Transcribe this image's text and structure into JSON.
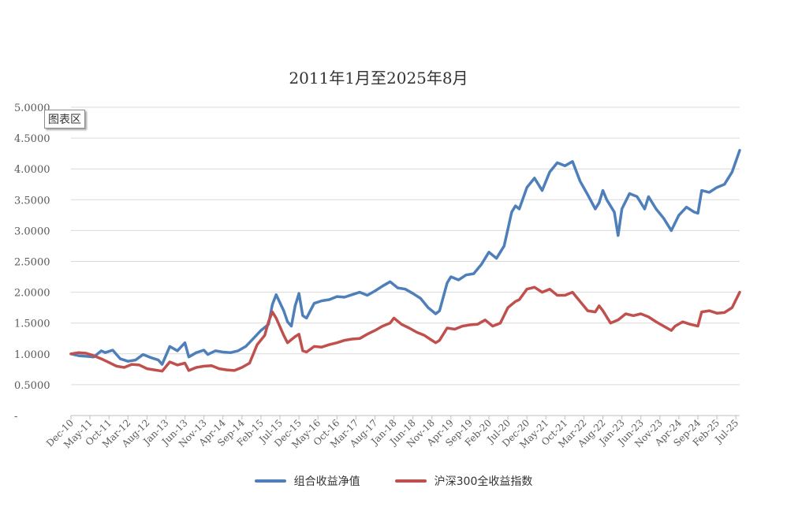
{
  "tooltip": "图表区",
  "chart_data": {
    "type": "line",
    "title": "2011年1月至2025年8月",
    "xlabel": "",
    "ylabel": "",
    "ylim": [
      0,
      5
    ],
    "y_ticks": [
      {
        "value": 0,
        "label": "-"
      },
      {
        "value": 0.5,
        "label": "0.5000"
      },
      {
        "value": 1.0,
        "label": "1.0000"
      },
      {
        "value": 1.5,
        "label": "1.5000"
      },
      {
        "value": 2.0,
        "label": "2.0000"
      },
      {
        "value": 2.5,
        "label": "2.5000"
      },
      {
        "value": 3.0,
        "label": "3.0000"
      },
      {
        "value": 3.5,
        "label": "3.5000"
      },
      {
        "value": 4.0,
        "label": "4.0000"
      },
      {
        "value": 4.5,
        "label": "4.5000"
      },
      {
        "value": 5.0,
        "label": "5.0000"
      }
    ],
    "x_tick_labels": [
      "Dec-10",
      "May-11",
      "Oct-11",
      "Mar-12",
      "Aug-12",
      "Jan-13",
      "Jun-13",
      "Nov-13",
      "Apr-14",
      "Sep-14",
      "Feb-15",
      "Jul-15",
      "Dec-15",
      "May-16",
      "Oct-16",
      "Mar-17",
      "Aug-17",
      "Jan-18",
      "Jun-18",
      "Nov-18",
      "Apr-19",
      "Sep-19",
      "Feb-20",
      "Jul-20",
      "Dec-20",
      "May-21",
      "Oct-21",
      "Mar-22",
      "Aug-22",
      "Jan-23",
      "Jun-23",
      "Nov-23",
      "Apr-24",
      "Sep-24",
      "Feb-25",
      "Jul-25"
    ],
    "x_start": "Dec-10",
    "x_end": "Aug-25",
    "grid": true,
    "legend_position": "bottom",
    "series": [
      {
        "name": "组合收益净值",
        "color": "#4e7fba",
        "points": [
          [
            "Dec-10",
            1.0
          ],
          [
            "Feb-11",
            0.97
          ],
          [
            "Apr-11",
            0.96
          ],
          [
            "Jun-11",
            0.95
          ],
          [
            "Aug-11",
            1.05
          ],
          [
            "Sep-11",
            1.02
          ],
          [
            "Nov-11",
            1.06
          ],
          [
            "Jan-12",
            0.92
          ],
          [
            "Mar-12",
            0.88
          ],
          [
            "May-12",
            0.9
          ],
          [
            "Jul-12",
            0.99
          ],
          [
            "Sep-12",
            0.94
          ],
          [
            "Nov-12",
            0.9
          ],
          [
            "Dec-12",
            0.83
          ],
          [
            "Feb-13",
            1.12
          ],
          [
            "Apr-13",
            1.05
          ],
          [
            "Jun-13",
            1.18
          ],
          [
            "Jul-13",
            0.95
          ],
          [
            "Sep-13",
            1.02
          ],
          [
            "Nov-13",
            1.06
          ],
          [
            "Dec-13",
            0.99
          ],
          [
            "Feb-14",
            1.05
          ],
          [
            "Apr-14",
            1.03
          ],
          [
            "Jun-14",
            1.02
          ],
          [
            "Aug-14",
            1.05
          ],
          [
            "Oct-14",
            1.12
          ],
          [
            "Dec-14",
            1.25
          ],
          [
            "Feb-15",
            1.38
          ],
          [
            "Apr-15",
            1.48
          ],
          [
            "May-15",
            1.8
          ],
          [
            "Jun-15",
            1.96
          ],
          [
            "Aug-15",
            1.7
          ],
          [
            "Sep-15",
            1.52
          ],
          [
            "Oct-15",
            1.45
          ],
          [
            "Nov-15",
            1.78
          ],
          [
            "Dec-15",
            1.98
          ],
          [
            "Jan-16",
            1.62
          ],
          [
            "Feb-16",
            1.58
          ],
          [
            "Apr-16",
            1.82
          ],
          [
            "Jun-16",
            1.86
          ],
          [
            "Aug-16",
            1.88
          ],
          [
            "Oct-16",
            1.93
          ],
          [
            "Dec-16",
            1.92
          ],
          [
            "Feb-17",
            1.96
          ],
          [
            "Apr-17",
            2.0
          ],
          [
            "Jun-17",
            1.95
          ],
          [
            "Aug-17",
            2.02
          ],
          [
            "Oct-17",
            2.1
          ],
          [
            "Dec-17",
            2.17
          ],
          [
            "Feb-18",
            2.07
          ],
          [
            "Apr-18",
            2.05
          ],
          [
            "Jun-18",
            1.98
          ],
          [
            "Aug-18",
            1.9
          ],
          [
            "Oct-18",
            1.75
          ],
          [
            "Dec-18",
            1.65
          ],
          [
            "Jan-19",
            1.7
          ],
          [
            "Mar-19",
            2.15
          ],
          [
            "Apr-19",
            2.25
          ],
          [
            "Jun-19",
            2.2
          ],
          [
            "Aug-19",
            2.28
          ],
          [
            "Oct-19",
            2.3
          ],
          [
            "Dec-19",
            2.45
          ],
          [
            "Feb-20",
            2.65
          ],
          [
            "Apr-20",
            2.55
          ],
          [
            "Jun-20",
            2.75
          ],
          [
            "Aug-20",
            3.3
          ],
          [
            "Sep-20",
            3.4
          ],
          [
            "Oct-20",
            3.35
          ],
          [
            "Dec-20",
            3.7
          ],
          [
            "Feb-21",
            3.85
          ],
          [
            "Apr-21",
            3.65
          ],
          [
            "Jun-21",
            3.95
          ],
          [
            "Aug-21",
            4.1
          ],
          [
            "Oct-21",
            4.05
          ],
          [
            "Dec-21",
            4.12
          ],
          [
            "Feb-22",
            3.8
          ],
          [
            "Apr-22",
            3.58
          ],
          [
            "Jun-22",
            3.35
          ],
          [
            "Jul-22",
            3.45
          ],
          [
            "Aug-22",
            3.65
          ],
          [
            "Sep-22",
            3.5
          ],
          [
            "Nov-22",
            3.3
          ],
          [
            "Dec-22",
            2.92
          ],
          [
            "Jan-23",
            3.35
          ],
          [
            "Mar-23",
            3.6
          ],
          [
            "May-23",
            3.55
          ],
          [
            "Jul-23",
            3.35
          ],
          [
            "Aug-23",
            3.55
          ],
          [
            "Oct-23",
            3.35
          ],
          [
            "Dec-23",
            3.2
          ],
          [
            "Feb-24",
            3.0
          ],
          [
            "Apr-24",
            3.25
          ],
          [
            "Jun-24",
            3.38
          ],
          [
            "Aug-24",
            3.3
          ],
          [
            "Sep-24",
            3.28
          ],
          [
            "Oct-24",
            3.65
          ],
          [
            "Dec-24",
            3.62
          ],
          [
            "Feb-25",
            3.7
          ],
          [
            "Apr-25",
            3.75
          ],
          [
            "Jun-25",
            3.95
          ],
          [
            "Aug-25",
            4.3
          ]
        ]
      },
      {
        "name": "沪深300全收益指数",
        "color": "#c0504d",
        "points": [
          [
            "Dec-10",
            1.0
          ],
          [
            "Feb-11",
            1.02
          ],
          [
            "Apr-11",
            1.01
          ],
          [
            "Jun-11",
            0.97
          ],
          [
            "Aug-11",
            0.92
          ],
          [
            "Oct-11",
            0.86
          ],
          [
            "Dec-11",
            0.8
          ],
          [
            "Feb-12",
            0.78
          ],
          [
            "Apr-12",
            0.83
          ],
          [
            "Jun-12",
            0.82
          ],
          [
            "Aug-12",
            0.76
          ],
          [
            "Oct-12",
            0.74
          ],
          [
            "Dec-12",
            0.72
          ],
          [
            "Feb-13",
            0.87
          ],
          [
            "Apr-13",
            0.82
          ],
          [
            "Jun-13",
            0.85
          ],
          [
            "Jul-13",
            0.73
          ],
          [
            "Sep-13",
            0.78
          ],
          [
            "Nov-13",
            0.8
          ],
          [
            "Jan-14",
            0.81
          ],
          [
            "Mar-14",
            0.76
          ],
          [
            "May-14",
            0.74
          ],
          [
            "Jul-14",
            0.73
          ],
          [
            "Sep-14",
            0.78
          ],
          [
            "Nov-14",
            0.85
          ],
          [
            "Jan-15",
            1.15
          ],
          [
            "Mar-15",
            1.3
          ],
          [
            "Apr-15",
            1.52
          ],
          [
            "May-15",
            1.68
          ],
          [
            "Jun-15",
            1.58
          ],
          [
            "Aug-15",
            1.3
          ],
          [
            "Sep-15",
            1.18
          ],
          [
            "Nov-15",
            1.28
          ],
          [
            "Dec-15",
            1.32
          ],
          [
            "Jan-16",
            1.05
          ],
          [
            "Feb-16",
            1.03
          ],
          [
            "Apr-16",
            1.12
          ],
          [
            "Jun-16",
            1.11
          ],
          [
            "Aug-16",
            1.15
          ],
          [
            "Oct-16",
            1.18
          ],
          [
            "Dec-16",
            1.22
          ],
          [
            "Feb-17",
            1.24
          ],
          [
            "Apr-17",
            1.25
          ],
          [
            "Jun-17",
            1.32
          ],
          [
            "Aug-17",
            1.38
          ],
          [
            "Oct-17",
            1.45
          ],
          [
            "Dec-17",
            1.5
          ],
          [
            "Jan-18",
            1.58
          ],
          [
            "Mar-18",
            1.48
          ],
          [
            "May-18",
            1.42
          ],
          [
            "Jul-18",
            1.35
          ],
          [
            "Sep-18",
            1.3
          ],
          [
            "Nov-18",
            1.22
          ],
          [
            "Dec-18",
            1.18
          ],
          [
            "Jan-19",
            1.22
          ],
          [
            "Mar-19",
            1.42
          ],
          [
            "May-19",
            1.4
          ],
          [
            "Jul-19",
            1.45
          ],
          [
            "Sep-19",
            1.47
          ],
          [
            "Nov-19",
            1.48
          ],
          [
            "Jan-20",
            1.55
          ],
          [
            "Mar-20",
            1.45
          ],
          [
            "May-20",
            1.5
          ],
          [
            "Jul-20",
            1.75
          ],
          [
            "Sep-20",
            1.85
          ],
          [
            "Oct-20",
            1.88
          ],
          [
            "Dec-20",
            2.05
          ],
          [
            "Feb-21",
            2.08
          ],
          [
            "Apr-21",
            2.0
          ],
          [
            "Jun-21",
            2.05
          ],
          [
            "Aug-21",
            1.95
          ],
          [
            "Oct-21",
            1.95
          ],
          [
            "Dec-21",
            2.0
          ],
          [
            "Feb-22",
            1.85
          ],
          [
            "Apr-22",
            1.7
          ],
          [
            "Jun-22",
            1.68
          ],
          [
            "Jul-22",
            1.78
          ],
          [
            "Aug-22",
            1.7
          ],
          [
            "Oct-22",
            1.5
          ],
          [
            "Dec-22",
            1.55
          ],
          [
            "Feb-23",
            1.65
          ],
          [
            "Apr-23",
            1.62
          ],
          [
            "Jun-23",
            1.65
          ],
          [
            "Aug-23",
            1.6
          ],
          [
            "Oct-23",
            1.52
          ],
          [
            "Dec-23",
            1.45
          ],
          [
            "Feb-24",
            1.38
          ],
          [
            "Mar-24",
            1.45
          ],
          [
            "May-24",
            1.52
          ],
          [
            "Jul-24",
            1.48
          ],
          [
            "Sep-24",
            1.45
          ],
          [
            "Oct-24",
            1.68
          ],
          [
            "Dec-24",
            1.7
          ],
          [
            "Feb-25",
            1.66
          ],
          [
            "Apr-25",
            1.67
          ],
          [
            "Jun-25",
            1.75
          ],
          [
            "Aug-25",
            2.0
          ]
        ]
      }
    ]
  }
}
